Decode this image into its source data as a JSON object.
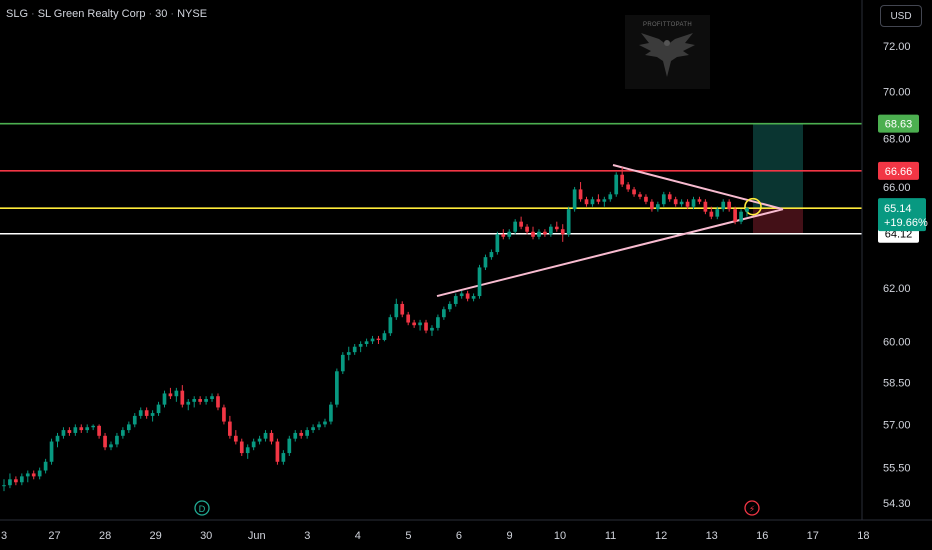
{
  "header": {
    "symbol": "SLG",
    "name": "SL Green Realty Corp",
    "interval": "30",
    "exchange": "NYSE",
    "separator": "·"
  },
  "currency_button": "USD",
  "watermark_logo": "PROFITTOPATH",
  "colors": {
    "background": "#000000",
    "up_candle": "#089981",
    "down_candle": "#f23645",
    "axis_text": "#d1d4dc",
    "green_line": "#4caf50",
    "red_line": "#f23645",
    "yellow_line": "#ffeb3b",
    "white_line": "#ffffff",
    "triangle_lines": "#f8bbd0"
  },
  "chart_data": {
    "type": "candlestick",
    "y_axis": {
      "ticks": [
        "72.00",
        "70.00",
        "68.00",
        "66.00",
        "62.00",
        "60.00",
        "58.50",
        "57.00",
        "55.50",
        "54.30"
      ],
      "scale": "log"
    },
    "x_axis": {
      "ticks": [
        "3",
        "27",
        "28",
        "29",
        "30",
        "Jun",
        "3",
        "4",
        "5",
        "6",
        "9",
        "10",
        "11",
        "12",
        "13",
        "16",
        "17",
        "18"
      ]
    },
    "horizontal_levels": [
      {
        "name": "green",
        "value": 68.63,
        "label": "68.63"
      },
      {
        "name": "red",
        "value": 66.66,
        "label": "66.66"
      },
      {
        "name": "yellow",
        "value": 65.14,
        "label": "65.14"
      },
      {
        "name": "white",
        "value": 64.12,
        "label": "64.12"
      }
    ],
    "last_price": {
      "value": "65.14",
      "change": "+19.66%"
    },
    "markers": [
      {
        "kind": "dividend",
        "label": "D"
      },
      {
        "kind": "earnings",
        "label": "⚡"
      }
    ],
    "position_tool": {
      "target": 68.63,
      "entry": 65.14,
      "stop": 64.12
    },
    "candles": [
      [
        54.9,
        55.1,
        54.7,
        54.9
      ],
      [
        54.9,
        55.3,
        54.8,
        55.1
      ],
      [
        55.1,
        55.2,
        54.9,
        55.0
      ],
      [
        55.0,
        55.3,
        54.9,
        55.2
      ],
      [
        55.2,
        55.4,
        55.0,
        55.3
      ],
      [
        55.3,
        55.4,
        55.1,
        55.2
      ],
      [
        55.2,
        55.5,
        55.1,
        55.4
      ],
      [
        55.4,
        55.8,
        55.3,
        55.7
      ],
      [
        55.7,
        56.5,
        55.6,
        56.4
      ],
      [
        56.4,
        56.7,
        56.2,
        56.6
      ],
      [
        56.6,
        56.9,
        56.5,
        56.8
      ],
      [
        56.8,
        56.9,
        56.6,
        56.7
      ],
      [
        56.7,
        57.0,
        56.6,
        56.9
      ],
      [
        56.9,
        57.0,
        56.7,
        56.8
      ],
      [
        56.8,
        57.0,
        56.7,
        56.9
      ],
      [
        56.9,
        57.0,
        56.8,
        56.95
      ],
      [
        56.95,
        57.0,
        56.5,
        56.6
      ],
      [
        56.6,
        56.7,
        56.1,
        56.2
      ],
      [
        56.2,
        56.4,
        56.1,
        56.3
      ],
      [
        56.3,
        56.7,
        56.2,
        56.6
      ],
      [
        56.6,
        56.9,
        56.5,
        56.8
      ],
      [
        56.8,
        57.1,
        56.7,
        57.0
      ],
      [
        57.0,
        57.4,
        56.9,
        57.3
      ],
      [
        57.3,
        57.6,
        57.2,
        57.5
      ],
      [
        57.5,
        57.6,
        57.2,
        57.3
      ],
      [
        57.3,
        57.5,
        57.1,
        57.4
      ],
      [
        57.4,
        57.8,
        57.3,
        57.7
      ],
      [
        57.7,
        58.2,
        57.6,
        58.1
      ],
      [
        58.1,
        58.3,
        57.9,
        58.0
      ],
      [
        58.0,
        58.3,
        57.8,
        58.2
      ],
      [
        58.2,
        58.4,
        57.6,
        57.7
      ],
      [
        57.7,
        57.9,
        57.5,
        57.8
      ],
      [
        57.8,
        58.0,
        57.6,
        57.9
      ],
      [
        57.9,
        58.0,
        57.7,
        57.8
      ],
      [
        57.8,
        58.0,
        57.7,
        57.9
      ],
      [
        57.9,
        58.1,
        57.8,
        58.0
      ],
      [
        58.0,
        58.1,
        57.5,
        57.6
      ],
      [
        57.6,
        57.7,
        57.0,
        57.1
      ],
      [
        57.1,
        57.3,
        56.5,
        56.6
      ],
      [
        56.6,
        56.8,
        56.3,
        56.4
      ],
      [
        56.4,
        56.5,
        55.9,
        56.0
      ],
      [
        56.0,
        56.3,
        55.8,
        56.2
      ],
      [
        56.2,
        56.5,
        56.1,
        56.4
      ],
      [
        56.4,
        56.6,
        56.3,
        56.5
      ],
      [
        56.5,
        56.8,
        56.4,
        56.7
      ],
      [
        56.7,
        56.8,
        56.3,
        56.4
      ],
      [
        56.4,
        56.5,
        55.6,
        55.7
      ],
      [
        55.7,
        56.1,
        55.6,
        56.0
      ],
      [
        56.0,
        56.6,
        55.9,
        56.5
      ],
      [
        56.5,
        56.8,
        56.4,
        56.7
      ],
      [
        56.7,
        56.8,
        56.5,
        56.6
      ],
      [
        56.6,
        56.9,
        56.5,
        56.8
      ],
      [
        56.8,
        57.0,
        56.7,
        56.9
      ],
      [
        56.9,
        57.1,
        56.8,
        57.0
      ],
      [
        57.0,
        57.2,
        56.9,
        57.1
      ],
      [
        57.1,
        57.8,
        57.0,
        57.7
      ],
      [
        57.7,
        59.0,
        57.6,
        58.9
      ],
      [
        58.9,
        59.6,
        58.8,
        59.5
      ],
      [
        59.5,
        59.8,
        59.3,
        59.6
      ],
      [
        59.6,
        59.9,
        59.5,
        59.8
      ],
      [
        59.8,
        60.0,
        59.6,
        59.9
      ],
      [
        59.9,
        60.1,
        59.8,
        60.0
      ],
      [
        60.0,
        60.2,
        59.9,
        60.1
      ],
      [
        60.1,
        60.2,
        59.9,
        60.05
      ],
      [
        60.05,
        60.4,
        60.0,
        60.3
      ],
      [
        60.3,
        61.0,
        60.2,
        60.9
      ],
      [
        60.9,
        61.6,
        60.8,
        61.4
      ],
      [
        61.4,
        61.5,
        60.9,
        61.0
      ],
      [
        61.0,
        61.1,
        60.6,
        60.7
      ],
      [
        60.7,
        60.8,
        60.5,
        60.6
      ],
      [
        60.6,
        60.8,
        60.4,
        60.7
      ],
      [
        60.7,
        60.8,
        60.3,
        60.4
      ],
      [
        60.4,
        60.6,
        60.2,
        60.5
      ],
      [
        60.5,
        61.0,
        60.4,
        60.9
      ],
      [
        60.9,
        61.3,
        60.8,
        61.2
      ],
      [
        61.2,
        61.5,
        61.1,
        61.4
      ],
      [
        61.4,
        61.8,
        61.3,
        61.7
      ],
      [
        61.7,
        61.9,
        61.6,
        61.8
      ],
      [
        61.8,
        61.9,
        61.5,
        61.6
      ],
      [
        61.6,
        61.8,
        61.5,
        61.7
      ],
      [
        61.7,
        62.9,
        61.6,
        62.8
      ],
      [
        62.8,
        63.3,
        62.7,
        63.2
      ],
      [
        63.2,
        63.5,
        63.1,
        63.4
      ],
      [
        63.4,
        64.2,
        63.3,
        64.1
      ],
      [
        64.1,
        64.3,
        63.9,
        64.0
      ],
      [
        64.0,
        64.3,
        63.9,
        64.2
      ],
      [
        64.2,
        64.7,
        64.1,
        64.6
      ],
      [
        64.6,
        64.8,
        64.3,
        64.4
      ],
      [
        64.4,
        64.5,
        64.1,
        64.2
      ],
      [
        64.2,
        64.4,
        63.9,
        64.0
      ],
      [
        64.0,
        64.3,
        63.9,
        64.2
      ],
      [
        64.2,
        64.3,
        64.0,
        64.1
      ],
      [
        64.1,
        64.5,
        64.0,
        64.4
      ],
      [
        64.4,
        64.6,
        64.2,
        64.3
      ],
      [
        64.3,
        64.5,
        63.8,
        64.1
      ],
      [
        64.1,
        65.2,
        64.0,
        65.1
      ],
      [
        65.1,
        66.0,
        65.0,
        65.9
      ],
      [
        65.9,
        66.2,
        65.4,
        65.5
      ],
      [
        65.5,
        65.6,
        65.2,
        65.3
      ],
      [
        65.3,
        65.6,
        65.2,
        65.5
      ],
      [
        65.5,
        65.7,
        65.3,
        65.4
      ],
      [
        65.4,
        65.6,
        65.2,
        65.5
      ],
      [
        65.5,
        65.8,
        65.4,
        65.7
      ],
      [
        65.7,
        66.6,
        65.6,
        66.5
      ],
      [
        66.5,
        66.8,
        66.0,
        66.1
      ],
      [
        66.1,
        66.2,
        65.8,
        65.9
      ],
      [
        65.9,
        66.0,
        65.6,
        65.7
      ],
      [
        65.7,
        65.8,
        65.5,
        65.6
      ],
      [
        65.6,
        65.7,
        65.3,
        65.4
      ],
      [
        65.4,
        65.5,
        65.0,
        65.1
      ],
      [
        65.1,
        65.4,
        65.0,
        65.3
      ],
      [
        65.3,
        65.8,
        65.2,
        65.7
      ],
      [
        65.7,
        65.8,
        65.4,
        65.5
      ],
      [
        65.5,
        65.6,
        65.2,
        65.3
      ],
      [
        65.3,
        65.5,
        65.2,
        65.4
      ],
      [
        65.4,
        65.5,
        65.1,
        65.2
      ],
      [
        65.2,
        65.6,
        65.1,
        65.5
      ],
      [
        65.5,
        65.6,
        65.3,
        65.4
      ],
      [
        65.4,
        65.5,
        64.9,
        65.0
      ],
      [
        65.0,
        65.2,
        64.7,
        64.8
      ],
      [
        64.8,
        65.2,
        64.7,
        65.1
      ],
      [
        65.1,
        65.5,
        65.0,
        65.4
      ],
      [
        65.4,
        65.5,
        65.0,
        65.1
      ],
      [
        65.1,
        65.2,
        64.5,
        64.6
      ],
      [
        64.6,
        65.1,
        64.5,
        65.0
      ],
      [
        65.0,
        65.2,
        64.8,
        65.14
      ]
    ]
  }
}
